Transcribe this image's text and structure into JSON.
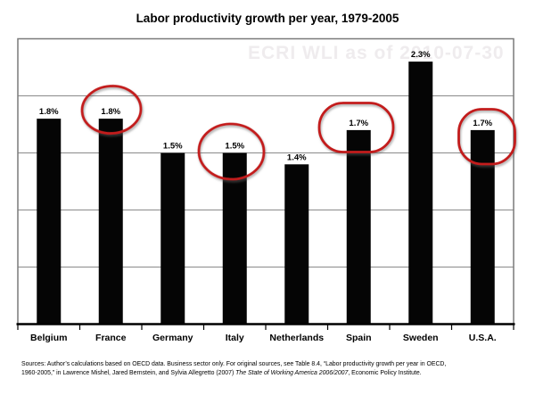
{
  "chart_data": {
    "type": "bar",
    "title": "Labor productivity growth per year, 1979-2005",
    "categories": [
      "Belgium",
      "France",
      "Germany",
      "Italy",
      "Netherlands",
      "Spain",
      "Sweden",
      "U.S.A."
    ],
    "values": [
      1.8,
      1.8,
      1.5,
      1.5,
      1.4,
      1.7,
      2.3,
      1.7
    ],
    "value_labels": [
      "1.8%",
      "1.8%",
      "1.5%",
      "1.5%",
      "1.4%",
      "1.7%",
      "2.3%",
      "1.7%"
    ],
    "circled_categories": [
      "France",
      "Italy",
      "Spain",
      "U.S.A."
    ],
    "xlabel": "",
    "ylabel": "",
    "ylim": [
      0,
      2.5
    ],
    "gridline_step": 0.5,
    "grid": true,
    "legend_position": "none",
    "colors": {
      "bar": "#050505",
      "annotation_red": "#c31c1c",
      "gridline": "#8a8a8a",
      "frame": "#7a7a7a",
      "axis": "#000000"
    }
  },
  "watermark": {
    "text": "ECRI WLI as of 2010-07-30"
  },
  "source_note": {
    "line1": "Sources: Author’s calculations based on OECD data. Business sector only. For original sources, see Table 8.4, “Labor productivity growth per year in OECD,",
    "line2_pre": "1960-2005,” in Lawrence Mishel, Jared Bernstein, and Sylvia Allegretto (2007) ",
    "line2_italic": "The State of Working America 2006/2007",
    "line2_post": ", Economic Policy Institute."
  }
}
